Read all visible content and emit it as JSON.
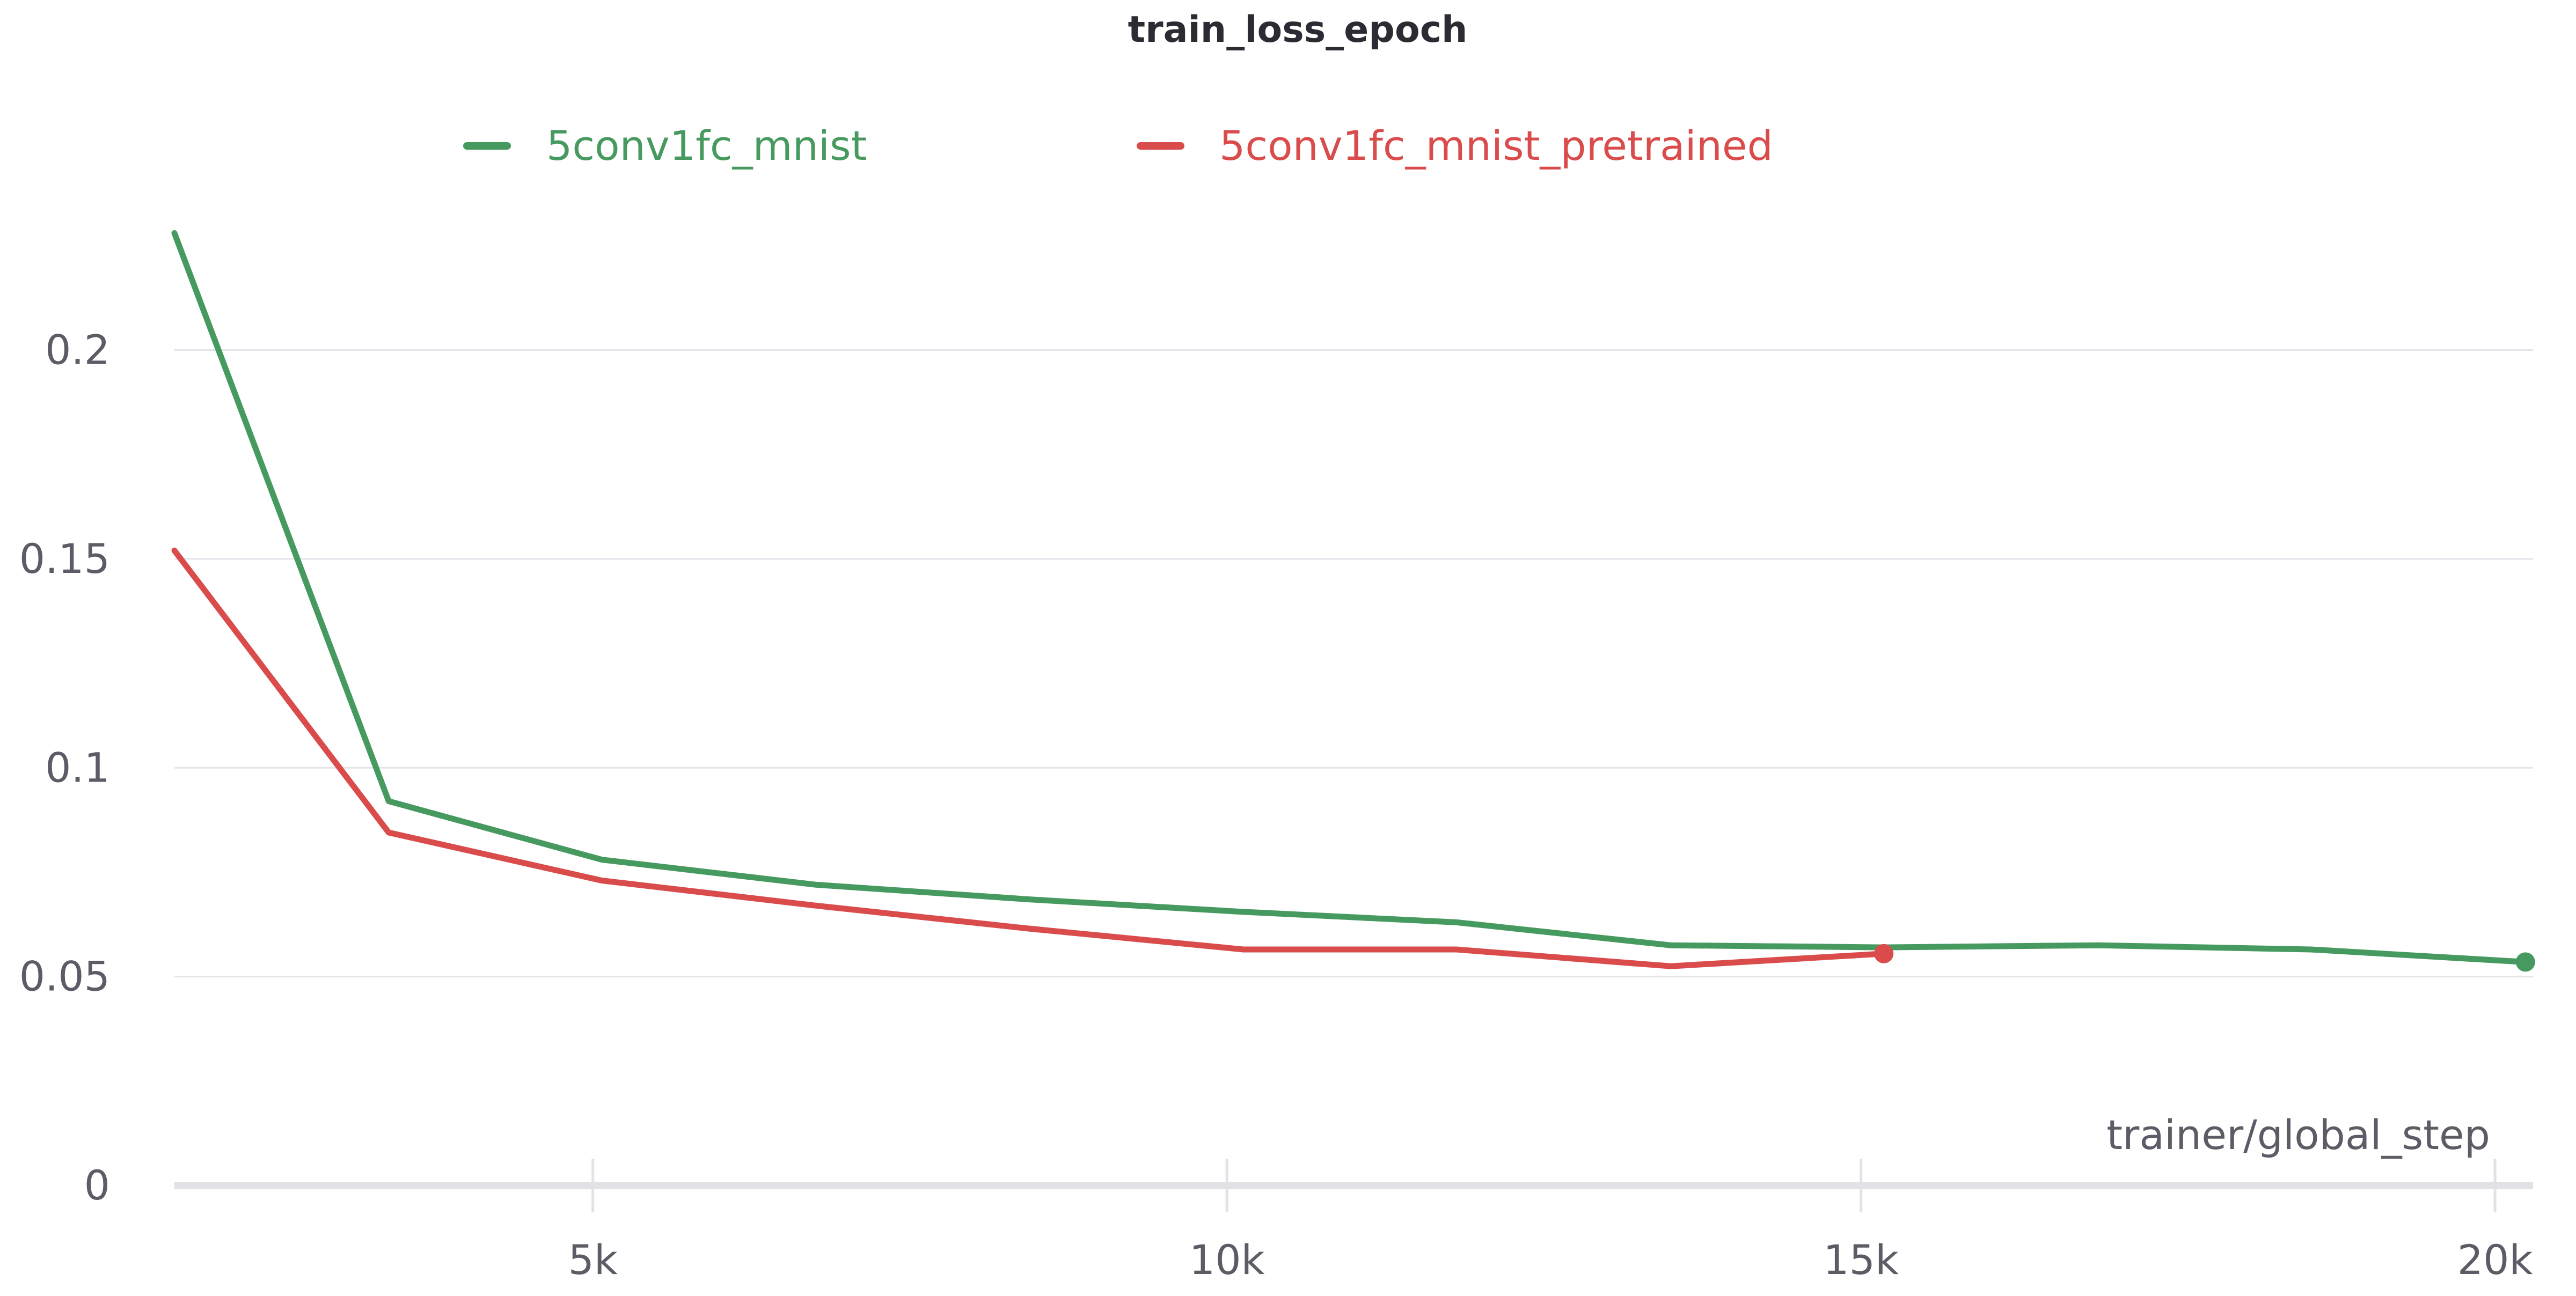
{
  "chart_data": {
    "type": "line",
    "title": "train_loss_epoch",
    "xlabel": "trainer/global_step",
    "ylabel": "",
    "xlim": [
      1700,
      20300
    ],
    "ylim": [
      0,
      0.235
    ],
    "x_ticks": [
      5000,
      10000,
      15000,
      20000
    ],
    "x_tick_labels": [
      "5k",
      "10k",
      "15k",
      "20k"
    ],
    "y_ticks": [
      0,
      0.05,
      0.1,
      0.15,
      0.2
    ],
    "y_tick_labels": [
      "0",
      "0.05",
      "0.1",
      "0.15",
      "0.2"
    ],
    "grid": true,
    "legend_position": "top",
    "series": [
      {
        "name": "5conv1fc_mnist",
        "color": "#479a5f",
        "x": [
          1700,
          3390,
          5070,
          6760,
          8440,
          10130,
          11810,
          13500,
          15180,
          16870,
          18550,
          20240
        ],
        "y": [
          0.228,
          0.092,
          0.078,
          0.072,
          0.0685,
          0.0655,
          0.063,
          0.0575,
          0.057,
          0.0575,
          0.0565,
          0.0535
        ]
      },
      {
        "name": "5conv1fc_mnist_pretrained",
        "color": "#da4c4c",
        "x": [
          1700,
          3390,
          5070,
          6760,
          8440,
          10130,
          11810,
          13500,
          15180
        ],
        "y": [
          0.152,
          0.0845,
          0.073,
          0.067,
          0.0615,
          0.0565,
          0.0565,
          0.0525,
          0.0555
        ]
      }
    ]
  }
}
